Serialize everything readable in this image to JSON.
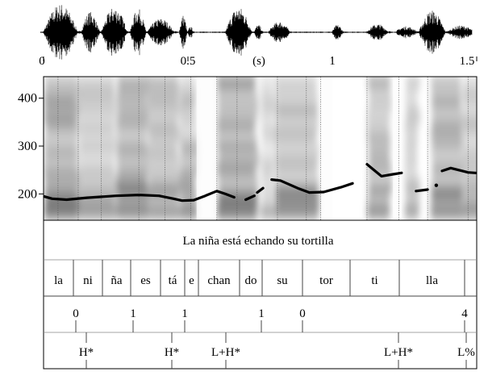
{
  "waveform": {
    "time_axis": {
      "unit_label": "(s)",
      "ticks": [
        {
          "value": 0,
          "label": "0"
        },
        {
          "value": 0.5,
          "label": "0.5"
        },
        {
          "value": 1,
          "label": "1"
        },
        {
          "value": 1.5,
          "label": "1.5"
        }
      ],
      "range": [
        0,
        1.5
      ]
    }
  },
  "chart_data": {
    "type": "line",
    "title": "",
    "xlabel": "(s)",
    "ylabel": "",
    "xlim": [
      0,
      1.5
    ],
    "ylim": [
      145,
      445
    ],
    "x_ticks": [
      0,
      0.5,
      1,
      1.5
    ],
    "y_ticks": [
      {
        "value": 200,
        "label": "200"
      },
      {
        "value": 300,
        "label": "300"
      },
      {
        "value": 400,
        "label": "400"
      }
    ],
    "pitch_segments": [
      [
        [
          0.0,
          195
        ],
        [
          0.03,
          190
        ],
        [
          0.08,
          188
        ],
        [
          0.15,
          192
        ],
        [
          0.25,
          196
        ],
        [
          0.33,
          198
        ],
        [
          0.4,
          196
        ],
        [
          0.45,
          190
        ],
        [
          0.48,
          186
        ],
        [
          0.52,
          187
        ],
        [
          0.56,
          196
        ],
        [
          0.6,
          206
        ],
        [
          0.63,
          200
        ],
        [
          0.66,
          193
        ]
      ],
      [
        [
          0.7,
          188
        ],
        [
          0.73,
          196
        ]
      ],
      [
        [
          0.74,
          203
        ],
        [
          0.76,
          212
        ]
      ],
      [
        [
          0.79,
          230
        ],
        [
          0.82,
          228
        ],
        [
          0.88,
          212
        ],
        [
          0.92,
          203
        ],
        [
          0.97,
          204
        ],
        [
          1.03,
          214
        ],
        [
          1.07,
          222
        ]
      ],
      [
        [
          1.12,
          262
        ],
        [
          1.14,
          252
        ],
        [
          1.17,
          237
        ],
        [
          1.21,
          241
        ],
        [
          1.24,
          244
        ]
      ],
      [
        [
          1.29,
          206
        ],
        [
          1.33,
          209
        ]
      ],
      [
        [
          1.36,
          218
        ]
      ],
      [
        [
          1.38,
          248
        ],
        [
          1.41,
          254
        ],
        [
          1.47,
          245
        ],
        [
          1.54,
          242
        ],
        [
          1.58,
          231
        ],
        [
          1.61,
          217
        ]
      ]
    ]
  },
  "transcription": {
    "sentence": "La niña está echando su tortilla",
    "syllables": [
      "la",
      "ni",
      "ña",
      "es",
      "tá",
      "e",
      "chan",
      "do",
      "su",
      "tor",
      "ti",
      "lla"
    ]
  },
  "break_indices": {
    "marks": [
      {
        "label": "0",
        "t": 0.12
      },
      {
        "label": "1",
        "t": 0.33
      },
      {
        "label": "1",
        "t": 0.52
      },
      {
        "label": "1",
        "t": 0.81
      },
      {
        "label": "0",
        "t": 0.96
      },
      {
        "label": "4",
        "t": 1.47
      }
    ]
  },
  "tones": {
    "marks": [
      {
        "label": "H*",
        "t": 0.15
      },
      {
        "label": "H*",
        "t": 0.46
      },
      {
        "label": "L+H*",
        "t": 0.65
      },
      {
        "label": "L+H*",
        "t": 1.27
      },
      {
        "label": "L%",
        "t": 1.52
      }
    ]
  }
}
